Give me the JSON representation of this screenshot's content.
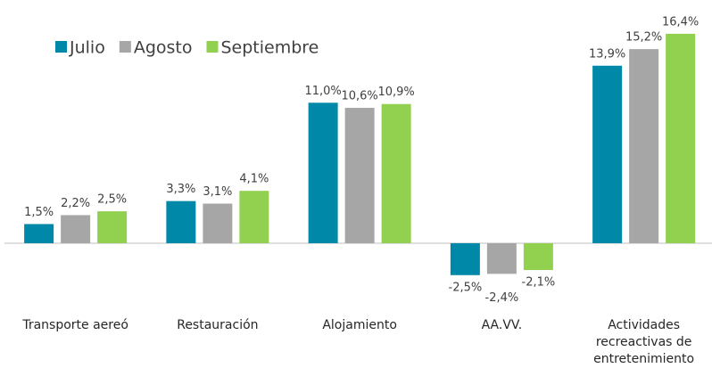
{
  "chart_data": {
    "type": "bar",
    "categories": [
      "Transporte aereó",
      "Restauración",
      "Alojamiento",
      "AA.VV.",
      "Actividades recreactivas de entretenimiento"
    ],
    "series": [
      {
        "name": "Julio",
        "color": "#0088a8",
        "values": [
          1.5,
          3.3,
          11.0,
          -2.5,
          13.9
        ],
        "value_labels": [
          "1,5%",
          "3,3%",
          "11,0%",
          "-2,5%",
          "13,9%"
        ]
      },
      {
        "name": "Agosto",
        "color": "#a6a6a6",
        "values": [
          2.2,
          3.1,
          10.6,
          -2.4,
          15.2
        ],
        "value_labels": [
          "2,2%",
          "3,1%",
          "10,6%",
          "-2,4%",
          "15,2%"
        ]
      },
      {
        "name": "Septiembre",
        "color": "#92d050",
        "values": [
          2.5,
          4.1,
          10.9,
          -2.1,
          16.4
        ],
        "value_labels": [
          "2,5%",
          "4,1%",
          "10,9%",
          "-2,1%",
          "16,4%"
        ]
      }
    ],
    "ylim": [
      -5,
      18
    ],
    "legend": "top-left"
  }
}
